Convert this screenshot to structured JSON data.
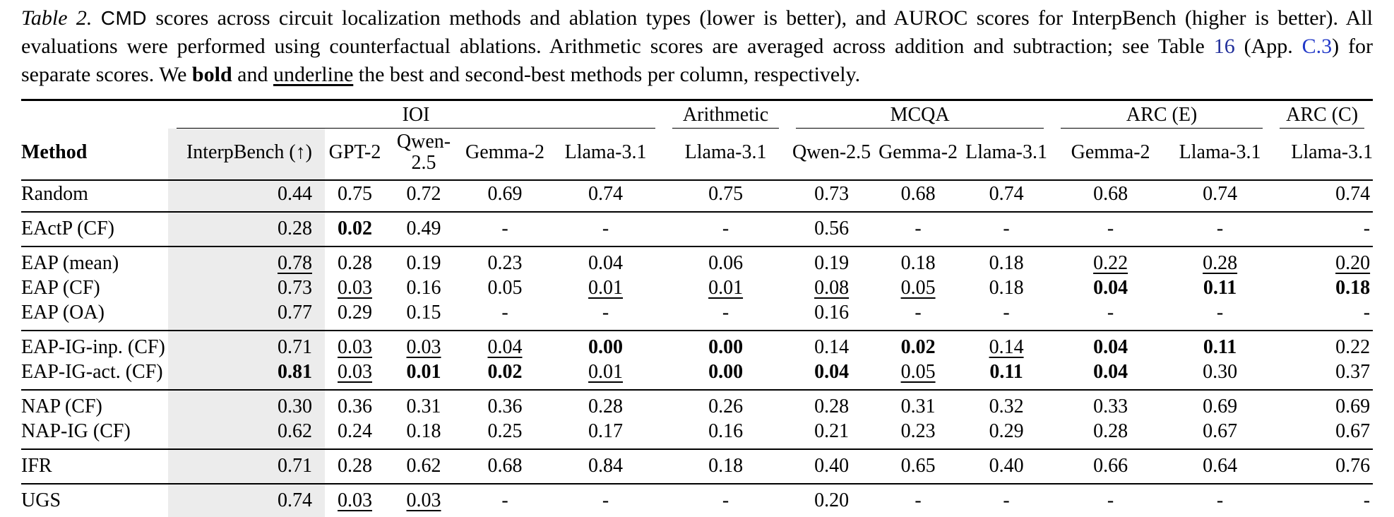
{
  "colors": {
    "text": "#000000",
    "rule": "#000000",
    "shaded_column_bg": "#ececec",
    "link_table": "#22309b",
    "link_app": "#2138c8"
  },
  "caption": {
    "segments": [
      {
        "text": "Table 2.",
        "style": "label",
        "name": "caption-label"
      },
      {
        "text": " ",
        "style": "",
        "name": "caption-text"
      },
      {
        "text": "CMD",
        "style": "method",
        "name": "caption-method-name"
      },
      {
        "text": " scores across circuit localization methods and ablation types (lower is better), and AUROC scores for InterpBench (higher is better). All evaluations were performed using counterfactual ablations. Arithmetic scores are averaged across addition and subtraction; see Table ",
        "style": "",
        "name": "caption-text"
      },
      {
        "text": "16",
        "style": "ref",
        "name": "table-16-link",
        "interactable": true
      },
      {
        "text": " (App. ",
        "style": "",
        "name": "caption-text"
      },
      {
        "text": "C.3",
        "style": "ref2",
        "name": "appendix-c3-link",
        "interactable": true
      },
      {
        "text": ") for separate scores. We ",
        "style": "",
        "name": "caption-text"
      },
      {
        "text": "bold",
        "style": "bold",
        "name": "caption-bold-word"
      },
      {
        "text": " and ",
        "style": "",
        "name": "caption-text"
      },
      {
        "text": "underline",
        "style": "underline",
        "name": "caption-underline-word"
      },
      {
        "text": " the best and second-best methods per column, respectively.",
        "style": "",
        "name": "caption-text"
      }
    ]
  },
  "table": {
    "column_groups": [
      {
        "label": "",
        "colspan": 1,
        "rule": false
      },
      {
        "label": "IOI",
        "colspan": 5,
        "rule": true
      },
      {
        "label": "Arithmetic",
        "colspan": 1,
        "rule": true
      },
      {
        "label": "MCQA",
        "colspan": 3,
        "rule": true
      },
      {
        "label": "ARC (E)",
        "colspan": 2,
        "rule": true
      },
      {
        "label": "ARC (C)",
        "colspan": 1,
        "rule": true
      }
    ],
    "columns": [
      {
        "label": "Method",
        "align": "left",
        "header_bold": true,
        "name": "method"
      },
      {
        "label": "InterpBench (↑)",
        "align": "right",
        "shaded": true,
        "name": "interpbench"
      },
      {
        "label": "GPT-2",
        "align": "center",
        "name": "ioi-gpt2"
      },
      {
        "label": "Qwen-2.5",
        "align": "center",
        "name": "ioi-qwen-2-5"
      },
      {
        "label": "Gemma-2",
        "align": "center",
        "name": "ioi-gemma-2"
      },
      {
        "label": "Llama-3.1",
        "align": "center",
        "name": "ioi-llama-3-1"
      },
      {
        "label": "Llama-3.1",
        "align": "center",
        "name": "arithmetic-llama-3-1"
      },
      {
        "label": "Qwen-2.5",
        "align": "center",
        "name": "mcqa-qwen-2-5"
      },
      {
        "label": "Gemma-2",
        "align": "center",
        "name": "mcqa-gemma-2"
      },
      {
        "label": "Llama-3.1",
        "align": "center",
        "name": "mcqa-llama-3-1"
      },
      {
        "label": "Gemma-2",
        "align": "center",
        "name": "arc-e-gemma-2"
      },
      {
        "label": "Llama-3.1",
        "align": "center",
        "name": "arc-e-llama-3-1"
      },
      {
        "label": "Llama-3.1",
        "align": "right",
        "name": "arc-c-llama-3-1"
      }
    ],
    "sections": [
      {
        "rows": [
          {
            "method": "Random",
            "cells": [
              {
                "v": "0.44",
                "f": ""
              },
              {
                "v": "0.75",
                "f": ""
              },
              {
                "v": "0.72",
                "f": ""
              },
              {
                "v": "0.69",
                "f": ""
              },
              {
                "v": "0.74",
                "f": ""
              },
              {
                "v": "0.75",
                "f": ""
              },
              {
                "v": "0.73",
                "f": ""
              },
              {
                "v": "0.68",
                "f": ""
              },
              {
                "v": "0.74",
                "f": ""
              },
              {
                "v": "0.68",
                "f": ""
              },
              {
                "v": "0.74",
                "f": ""
              },
              {
                "v": "0.74",
                "f": ""
              }
            ]
          }
        ]
      },
      {
        "rows": [
          {
            "method": "EActP (CF)",
            "cells": [
              {
                "v": "0.28",
                "f": ""
              },
              {
                "v": "0.02",
                "f": "b"
              },
              {
                "v": "0.49",
                "f": ""
              },
              {
                "v": "-",
                "f": ""
              },
              {
                "v": "-",
                "f": ""
              },
              {
                "v": "-",
                "f": ""
              },
              {
                "v": "0.56",
                "f": ""
              },
              {
                "v": "-",
                "f": ""
              },
              {
                "v": "-",
                "f": ""
              },
              {
                "v": "-",
                "f": ""
              },
              {
                "v": "-",
                "f": ""
              },
              {
                "v": "-",
                "f": ""
              }
            ]
          }
        ]
      },
      {
        "rows": [
          {
            "method": "EAP (mean)",
            "cells": [
              {
                "v": "0.78",
                "f": "u"
              },
              {
                "v": "0.28",
                "f": ""
              },
              {
                "v": "0.19",
                "f": ""
              },
              {
                "v": "0.23",
                "f": ""
              },
              {
                "v": "0.04",
                "f": ""
              },
              {
                "v": "0.06",
                "f": ""
              },
              {
                "v": "0.19",
                "f": ""
              },
              {
                "v": "0.18",
                "f": ""
              },
              {
                "v": "0.18",
                "f": ""
              },
              {
                "v": "0.22",
                "f": "u"
              },
              {
                "v": "0.28",
                "f": "u"
              },
              {
                "v": "0.20",
                "f": "u"
              }
            ]
          },
          {
            "method": "EAP (CF)",
            "cells": [
              {
                "v": "0.73",
                "f": ""
              },
              {
                "v": "0.03",
                "f": "u"
              },
              {
                "v": "0.16",
                "f": ""
              },
              {
                "v": "0.05",
                "f": ""
              },
              {
                "v": "0.01",
                "f": "u"
              },
              {
                "v": "0.01",
                "f": "u"
              },
              {
                "v": "0.08",
                "f": "u"
              },
              {
                "v": "0.05",
                "f": "u"
              },
              {
                "v": "0.18",
                "f": ""
              },
              {
                "v": "0.04",
                "f": "b"
              },
              {
                "v": "0.11",
                "f": "b"
              },
              {
                "v": "0.18",
                "f": "b"
              }
            ]
          },
          {
            "method": "EAP (OA)",
            "cells": [
              {
                "v": "0.77",
                "f": ""
              },
              {
                "v": "0.29",
                "f": ""
              },
              {
                "v": "0.15",
                "f": ""
              },
              {
                "v": "-",
                "f": ""
              },
              {
                "v": "-",
                "f": ""
              },
              {
                "v": "-",
                "f": ""
              },
              {
                "v": "0.16",
                "f": ""
              },
              {
                "v": "-",
                "f": ""
              },
              {
                "v": "-",
                "f": ""
              },
              {
                "v": "-",
                "f": ""
              },
              {
                "v": "-",
                "f": ""
              },
              {
                "v": "-",
                "f": ""
              }
            ]
          }
        ]
      },
      {
        "rows": [
          {
            "method": "EAP-IG-inp. (CF)",
            "cells": [
              {
                "v": "0.71",
                "f": ""
              },
              {
                "v": "0.03",
                "f": "u"
              },
              {
                "v": "0.03",
                "f": "u"
              },
              {
                "v": "0.04",
                "f": "u"
              },
              {
                "v": "0.00",
                "f": "b"
              },
              {
                "v": "0.00",
                "f": "b"
              },
              {
                "v": "0.14",
                "f": ""
              },
              {
                "v": "0.02",
                "f": "b"
              },
              {
                "v": "0.14",
                "f": "u"
              },
              {
                "v": "0.04",
                "f": "b"
              },
              {
                "v": "0.11",
                "f": "b"
              },
              {
                "v": "0.22",
                "f": ""
              }
            ]
          },
          {
            "method": "EAP-IG-act. (CF)",
            "cells": [
              {
                "v": "0.81",
                "f": "b"
              },
              {
                "v": "0.03",
                "f": "u"
              },
              {
                "v": "0.01",
                "f": "b"
              },
              {
                "v": "0.02",
                "f": "b"
              },
              {
                "v": "0.01",
                "f": "u"
              },
              {
                "v": "0.00",
                "f": "b"
              },
              {
                "v": "0.04",
                "f": "b"
              },
              {
                "v": "0.05",
                "f": "u"
              },
              {
                "v": "0.11",
                "f": "b"
              },
              {
                "v": "0.04",
                "f": "b"
              },
              {
                "v": "0.30",
                "f": ""
              },
              {
                "v": "0.37",
                "f": ""
              }
            ]
          }
        ]
      },
      {
        "rows": [
          {
            "method": "NAP (CF)",
            "cells": [
              {
                "v": "0.30",
                "f": ""
              },
              {
                "v": "0.36",
                "f": ""
              },
              {
                "v": "0.31",
                "f": ""
              },
              {
                "v": "0.36",
                "f": ""
              },
              {
                "v": "0.28",
                "f": ""
              },
              {
                "v": "0.26",
                "f": ""
              },
              {
                "v": "0.28",
                "f": ""
              },
              {
                "v": "0.31",
                "f": ""
              },
              {
                "v": "0.32",
                "f": ""
              },
              {
                "v": "0.33",
                "f": ""
              },
              {
                "v": "0.69",
                "f": ""
              },
              {
                "v": "0.69",
                "f": ""
              }
            ]
          },
          {
            "method": "NAP-IG (CF)",
            "cells": [
              {
                "v": "0.62",
                "f": ""
              },
              {
                "v": "0.24",
                "f": ""
              },
              {
                "v": "0.18",
                "f": ""
              },
              {
                "v": "0.25",
                "f": ""
              },
              {
                "v": "0.17",
                "f": ""
              },
              {
                "v": "0.16",
                "f": ""
              },
              {
                "v": "0.21",
                "f": ""
              },
              {
                "v": "0.23",
                "f": ""
              },
              {
                "v": "0.29",
                "f": ""
              },
              {
                "v": "0.28",
                "f": ""
              },
              {
                "v": "0.67",
                "f": ""
              },
              {
                "v": "0.67",
                "f": ""
              }
            ]
          }
        ]
      },
      {
        "rows": [
          {
            "method": "IFR",
            "cells": [
              {
                "v": "0.71",
                "f": ""
              },
              {
                "v": "0.28",
                "f": ""
              },
              {
                "v": "0.62",
                "f": ""
              },
              {
                "v": "0.68",
                "f": ""
              },
              {
                "v": "0.84",
                "f": ""
              },
              {
                "v": "0.18",
                "f": ""
              },
              {
                "v": "0.40",
                "f": ""
              },
              {
                "v": "0.65",
                "f": ""
              },
              {
                "v": "0.40",
                "f": ""
              },
              {
                "v": "0.66",
                "f": ""
              },
              {
                "v": "0.64",
                "f": ""
              },
              {
                "v": "0.76",
                "f": ""
              }
            ]
          }
        ]
      },
      {
        "rows": [
          {
            "method": "UGS",
            "cells": [
              {
                "v": "0.74",
                "f": ""
              },
              {
                "v": "0.03",
                "f": "u"
              },
              {
                "v": "0.03",
                "f": "u"
              },
              {
                "v": "-",
                "f": ""
              },
              {
                "v": "-",
                "f": ""
              },
              {
                "v": "-",
                "f": ""
              },
              {
                "v": "0.20",
                "f": ""
              },
              {
                "v": "-",
                "f": ""
              },
              {
                "v": "-",
                "f": ""
              },
              {
                "v": "-",
                "f": ""
              },
              {
                "v": "-",
                "f": ""
              },
              {
                "v": "-",
                "f": ""
              }
            ]
          }
        ]
      }
    ]
  }
}
